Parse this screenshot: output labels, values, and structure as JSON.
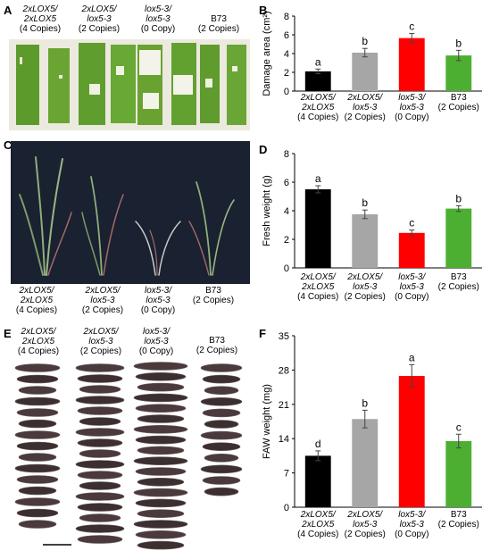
{
  "panels": {
    "A": {
      "letter": "A",
      "groups": [
        {
          "line1": "2xLOX5/",
          "line2": "2xLOX5",
          "copies": "(4 Copies)"
        },
        {
          "line1": "2xLOX5/",
          "line2": "lox5-3",
          "copies": "(2 Copies)"
        },
        {
          "line1": "lox5-3/",
          "line2": "lox5-3",
          "copies": "(0 Copy)"
        },
        {
          "line1": "B73",
          "line2": "",
          "copies": "(2 Copies)"
        }
      ]
    },
    "C": {
      "letter": "C",
      "groups": [
        {
          "line1": "2xLOX5/",
          "line2": "2xLOX5",
          "copies": "(4 Copies)"
        },
        {
          "line1": "2xLOX5/",
          "line2": "lox5-3",
          "copies": "(2 Copies)"
        },
        {
          "line1": "lox5-3/",
          "line2": "lox5-3",
          "copies": "(0 Copy)"
        },
        {
          "line1": "B73",
          "line2": "",
          "copies": "(2 Copies)"
        }
      ]
    },
    "E": {
      "letter": "E",
      "groups": [
        {
          "line1": "2xLOX5/",
          "line2": "2xLOX5",
          "copies": "(4 Copies)"
        },
        {
          "line1": "2xLOX5/",
          "line2": "lox5-3",
          "copies": "(2 Copies)"
        },
        {
          "line1": "lox5-3/",
          "line2": "lox5-3",
          "copies": "(0 Copy)"
        },
        {
          "line1": "B73",
          "line2": "",
          "copies": "(2 Copies)"
        }
      ]
    }
  },
  "chart_data": [
    {
      "panel": "B",
      "type": "bar",
      "categories": [
        {
          "line1": "2xLOX5/",
          "line2": "2xLOX5",
          "copies": "(4 Copies)"
        },
        {
          "line1": "2xLOX5/",
          "line2": "lox5-3",
          "copies": "(2 Copies)"
        },
        {
          "line1": "lox5-3/",
          "line2": "lox5-3",
          "copies": "(0 Copy)"
        },
        {
          "line1": "B73",
          "line2": "",
          "copies": "(2 Copies)"
        }
      ],
      "values": [
        2.1,
        4.1,
        5.65,
        3.8
      ],
      "errors": [
        0.25,
        0.45,
        0.5,
        0.55
      ],
      "letters": [
        "a",
        "b",
        "c",
        "b"
      ],
      "colors": [
        "#000000",
        "#a6a6a6",
        "#ff0000",
        "#4caf32"
      ],
      "ylabel": "Damage area (cm²)",
      "ylim": [
        0,
        8
      ],
      "yticks": [
        0,
        2,
        4,
        6,
        8
      ]
    },
    {
      "panel": "D",
      "type": "bar",
      "categories": [
        {
          "line1": "2xLOX5/",
          "line2": "2xLOX5",
          "copies": "(4 Copies)"
        },
        {
          "line1": "2xLOX5/",
          "line2": "lox5-3",
          "copies": "(2 Copies)"
        },
        {
          "line1": "lox5-3/",
          "line2": "lox5-3",
          "copies": "(0 Copy)"
        },
        {
          "line1": "B73",
          "line2": "",
          "copies": "(2 Copies)"
        }
      ],
      "values": [
        5.5,
        3.75,
        2.45,
        4.15
      ],
      "errors": [
        0.25,
        0.3,
        0.2,
        0.2
      ],
      "letters": [
        "a",
        "b",
        "c",
        "b"
      ],
      "colors": [
        "#000000",
        "#a6a6a6",
        "#ff0000",
        "#4caf32"
      ],
      "ylabel": "Fresh weight (g)",
      "ylim": [
        0,
        8
      ],
      "yticks": [
        0,
        2,
        4,
        6,
        8
      ]
    },
    {
      "panel": "F",
      "type": "bar",
      "categories": [
        {
          "line1": "2xLOX5/",
          "line2": "2xLOX5",
          "copies": "(4 Copies)"
        },
        {
          "line1": "2xLOX5/",
          "line2": "lox5-3",
          "copies": "(2 Copies)"
        },
        {
          "line1": "lox5-3/",
          "line2": "lox5-3",
          "copies": "(0 Copy)"
        },
        {
          "line1": "B73",
          "line2": "",
          "copies": "(2 Copies)"
        }
      ],
      "values": [
        10.5,
        18.0,
        26.8,
        13.5
      ],
      "errors": [
        1.0,
        1.8,
        2.3,
        1.4
      ],
      "letters": [
        "d",
        "b",
        "a",
        "c"
      ],
      "colors": [
        "#000000",
        "#a6a6a6",
        "#ff0000",
        "#4caf32"
      ],
      "ylabel": "FAW weight (mg)",
      "ylim": [
        0,
        35
      ],
      "yticks": [
        0,
        7,
        14,
        21,
        28,
        35
      ]
    }
  ]
}
